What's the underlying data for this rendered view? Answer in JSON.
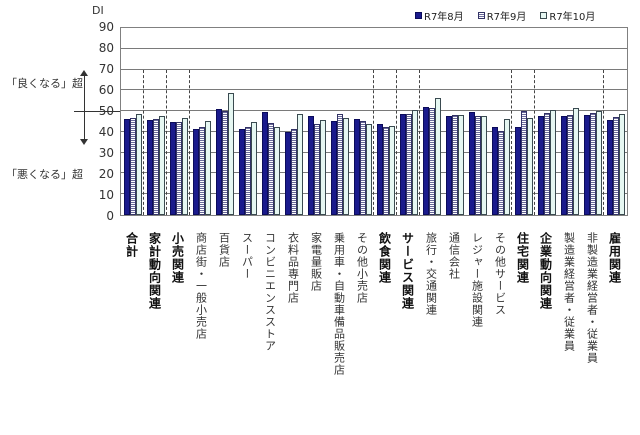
{
  "chart_data": {
    "type": "bar",
    "title": "",
    "xlabel": "",
    "ylabel": "DI",
    "ylim": [
      0,
      90
    ],
    "yticks": [
      0,
      10,
      20,
      30,
      40,
      50,
      60,
      70,
      80,
      90
    ],
    "grid": true,
    "legend_position": "top-right",
    "annotations": {
      "above_50": "「良くなる」超",
      "below_50": "「悪くなる」超"
    },
    "categories": [
      "合計",
      "家計動向関連",
      "小売関連",
      "商店街・一般小売店",
      "百貨店",
      "スーパー",
      "コンビニエンスストア",
      "衣料品専門店",
      "家電量販店",
      "乗用車・自動車備品販売店",
      "その他小売店",
      "飲食関連",
      "サービス関連",
      "旅行・交通関連",
      "通信会社",
      "レジャー施設関連",
      "その他サービス",
      "住宅関連",
      "企業動向関連",
      "製造業経営者・従業員",
      "非製造業経営者・従業員",
      "雇用関連"
    ],
    "bold_categories": [
      "合計",
      "家計動向関連",
      "小売関連",
      "飲食関連",
      "サービス関連",
      "住宅関連",
      "企業動向関連",
      "雇用関連"
    ],
    "series": [
      {
        "name": "R7年8月",
        "color": "#1a1a8c",
        "values": [
          46.3,
          45.9,
          44.9,
          41.3,
          51.1,
          41.3,
          49.7,
          39.9,
          47.6,
          45.2,
          46.2,
          43.8,
          48.7,
          52.1,
          47.6,
          49.5,
          42.6,
          42.4,
          47.8,
          47.5,
          48.1,
          45.6
        ]
      },
      {
        "name": "R7年9月",
        "color": "#9a9ac0",
        "values": [
          46.7,
          46.3,
          45.0,
          42.2,
          50.1,
          42.2,
          44.1,
          41.4,
          43.7,
          48.6,
          45.2,
          42.2,
          48.8,
          51.7,
          47.9,
          47.6,
          40.5,
          50.0,
          49.0,
          48.1,
          49.0,
          47.1
        ]
      },
      {
        "name": "R7年10月",
        "color": "#e6f7f2",
        "values": [
          48.7,
          47.8,
          46.8,
          45.1,
          58.7,
          44.9,
          42.4,
          48.4,
          45.7,
          46.5,
          43.9,
          42.9,
          50.6,
          56.2,
          47.9,
          47.6,
          46.0,
          46.8,
          50.6,
          51.3,
          50.3,
          48.4
        ]
      }
    ],
    "dividers_after_index": [
      0,
      1,
      2,
      10,
      11,
      12,
      16,
      17,
      20
    ]
  },
  "legend": [
    {
      "label": "R7年8月"
    },
    {
      "label": "R7年9月"
    },
    {
      "label": "R7年10月"
    }
  ],
  "axis": {
    "ylabel": "DI",
    "ticks": [
      "90",
      "80",
      "70",
      "60",
      "50",
      "40",
      "30",
      "20",
      "10",
      "0"
    ]
  },
  "side": {
    "above": "「良くなる」超",
    "below": "「悪くなる」超"
  }
}
